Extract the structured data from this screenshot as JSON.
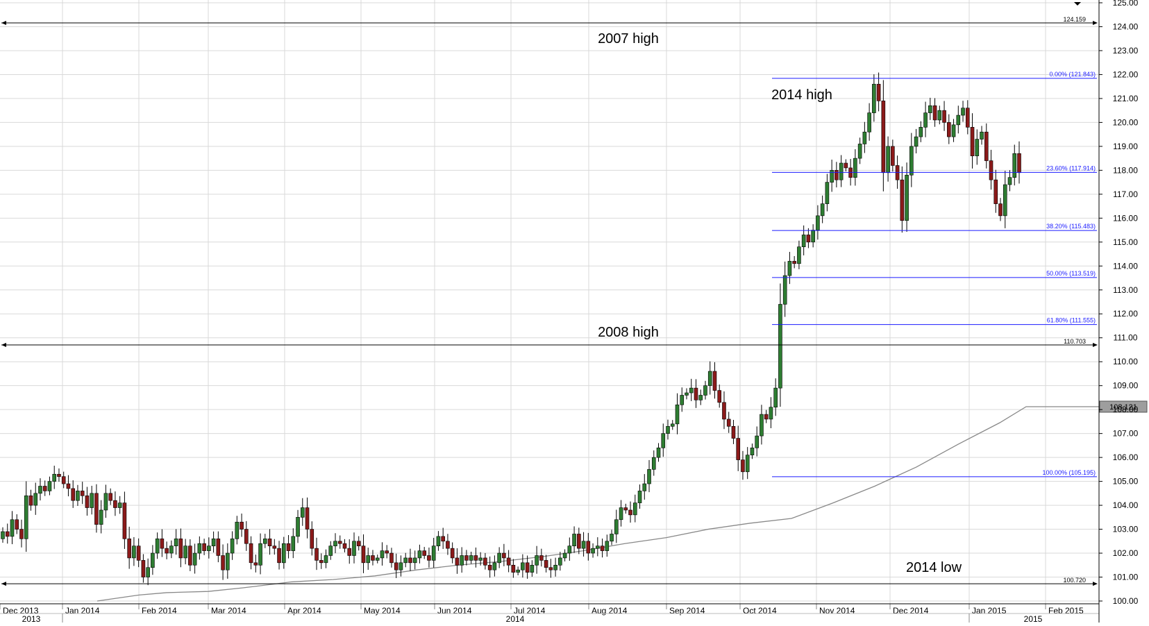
{
  "chart_data": {
    "type": "candlestick",
    "y_axis": {
      "range": [
        99.75,
        125.0
      ],
      "ticks": [
        "100.00",
        "101.00",
        "102.00",
        "103.00",
        "104.00",
        "105.00",
        "106.00",
        "107.00",
        "108.00",
        "109.00",
        "110.00",
        "111.00",
        "112.00",
        "113.00",
        "114.00",
        "115.00",
        "116.00",
        "117.00",
        "118.00",
        "119.00",
        "120.00",
        "121.00",
        "122.00",
        "123.00",
        "124.00",
        "125.00"
      ]
    },
    "x_axis": {
      "months": [
        "Dec 2013",
        "Jan 2014",
        "Feb 2014",
        "Mar 2014",
        "Apr 2014",
        "May 2014",
        "Jun 2014",
        "Jul 2014",
        "Aug 2014",
        "Sep 2014",
        "Oct 2014",
        "Nov 2014",
        "Dec 2014",
        "Jan 2015",
        "Feb 2015"
      ],
      "years": [
        "2013",
        "2014",
        "2015"
      ]
    },
    "key_levels": [
      {
        "value": 124.159,
        "label": "124.159",
        "annotation": "2007 high"
      },
      {
        "value": 110.703,
        "label": "110.703",
        "annotation": "2008 high"
      },
      {
        "value": 100.72,
        "label": "100.720",
        "annotation": "2014 low"
      }
    ],
    "fibonacci": {
      "high": 121.843,
      "low": 105.195,
      "annotation_high": "2014 high",
      "levels": [
        {
          "value": 121.843,
          "label": "0.00% (121.843)"
        },
        {
          "value": 117.914,
          "label": "23.60% (117.914)"
        },
        {
          "value": 115.483,
          "label": "38.20% (115.483)"
        },
        {
          "value": 113.519,
          "label": "50.00% (113.519)"
        },
        {
          "value": 111.555,
          "label": "61.80% (111.555)"
        },
        {
          "value": 105.195,
          "label": "100.00% (105.195)"
        }
      ]
    },
    "moving_average": {
      "last_value": 108.121,
      "label": "108.121"
    },
    "series_close": [
      102.9,
      102.7,
      103.4,
      103.0,
      102.6,
      104.4,
      104.0,
      104.5,
      104.8,
      104.6,
      105.0,
      105.3,
      105.2,
      104.9,
      104.7,
      104.2,
      104.6,
      104.4,
      103.9,
      104.5,
      103.2,
      103.8,
      104.5,
      104.2,
      103.9,
      104.1,
      102.6,
      101.8,
      102.3,
      101.7,
      101.0,
      101.4,
      102.0,
      102.6,
      102.2,
      102.0,
      102.3,
      102.6,
      101.8,
      102.3,
      101.5,
      102.0,
      102.4,
      102.1,
      102.3,
      102.6,
      101.9,
      101.3,
      102.0,
      102.6,
      103.3,
      103.0,
      102.4,
      101.6,
      101.5,
      102.4,
      102.6,
      102.3,
      102.2,
      101.6,
      102.4,
      102.1,
      102.7,
      103.5,
      103.9,
      103.0,
      102.2,
      101.7,
      101.6,
      101.9,
      102.3,
      102.5,
      102.4,
      102.2,
      101.9,
      102.5,
      102.3,
      101.6,
      101.9,
      101.7,
      101.8,
      102.1,
      102.0,
      101.6,
      101.3,
      101.6,
      101.8,
      101.6,
      101.8,
      102.1,
      101.9,
      101.7,
      102.3,
      102.7,
      102.5,
      102.2,
      101.8,
      101.5,
      101.9,
      101.7,
      101.9,
      101.7,
      101.8,
      101.5,
      101.3,
      101.6,
      102.0,
      101.8,
      101.5,
      101.2,
      101.3,
      101.6,
      101.2,
      101.5,
      101.9,
      101.7,
      101.4,
      101.3,
      101.5,
      101.8,
      102.0,
      102.3,
      102.8,
      102.2,
      102.5,
      102.0,
      102.2,
      102.3,
      102.1,
      102.5,
      102.8,
      103.4,
      103.9,
      103.8,
      103.6,
      104.1,
      104.6,
      104.9,
      105.5,
      106.0,
      106.4,
      107.0,
      107.3,
      107.4,
      108.2,
      108.6,
      108.7,
      108.9,
      108.4,
      108.6,
      109.0,
      109.6,
      108.8,
      108.3,
      107.6,
      107.3,
      106.8,
      105.9,
      105.4,
      106.1,
      106.4,
      106.9,
      107.8,
      107.6,
      108.1,
      108.9,
      112.4,
      113.6,
      114.2,
      114.1,
      114.8,
      115.3,
      115.0,
      115.5,
      116.1,
      116.6,
      117.5,
      118.0,
      117.6,
      118.3,
      118.1,
      117.7,
      118.5,
      119.1,
      119.6,
      120.4,
      121.6,
      120.9,
      117.9,
      119.0,
      118.2,
      117.6,
      115.9,
      117.8,
      119.0,
      119.4,
      119.8,
      120.4,
      120.7,
      120.1,
      120.5,
      120.0,
      119.4,
      119.9,
      120.3,
      120.6,
      119.8,
      118.6,
      119.3,
      119.6,
      118.4,
      117.6,
      116.6,
      116.1,
      117.4,
      117.7,
      118.7,
      117.9
    ]
  }
}
